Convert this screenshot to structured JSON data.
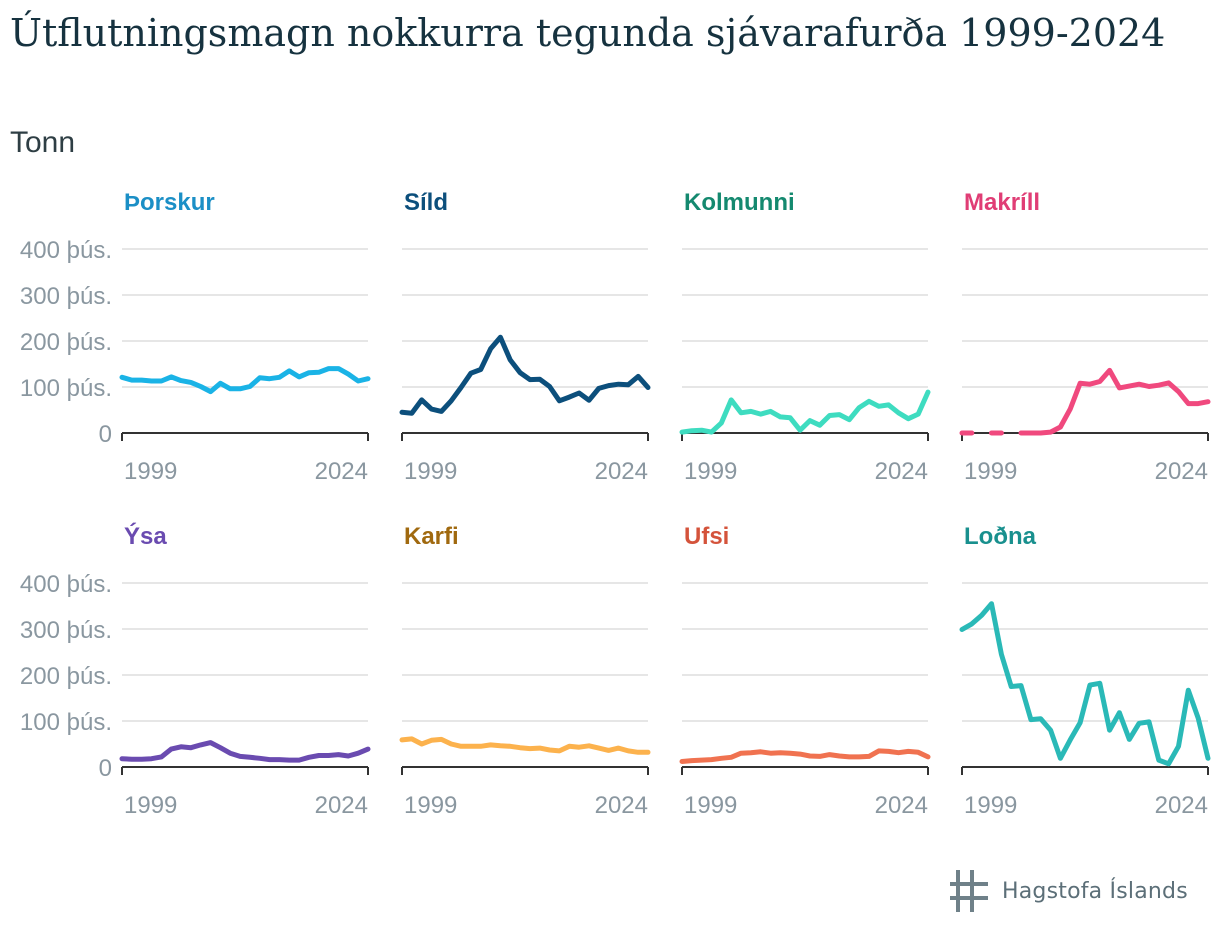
{
  "title": "Útflutningsmagn nokkurra tegunda sjávarafurða 1999-2024",
  "subtitle": "Tonn",
  "logo_text": "Hagstofa Íslands",
  "chart_data": {
    "type": "line",
    "unit": "Tonn",
    "x": [
      1999,
      2000,
      2001,
      2002,
      2003,
      2004,
      2005,
      2006,
      2007,
      2008,
      2009,
      2010,
      2011,
      2012,
      2013,
      2014,
      2015,
      2016,
      2017,
      2018,
      2019,
      2020,
      2021,
      2022,
      2023,
      2024
    ],
    "x_tick_labels": [
      "1999",
      "2024"
    ],
    "y_tick_labels": [
      "0",
      "100 þús.",
      "200 þús.",
      "300 þús.",
      "400 þús."
    ],
    "y_ticks": [
      0,
      100000,
      200000,
      300000,
      400000
    ],
    "ylim": [
      0,
      400000
    ],
    "grid": true,
    "layout": "2 rows x 4 columns",
    "series": [
      {
        "name": "Þorskur",
        "color": "#1ab3e6",
        "values": [
          121000,
          115000,
          115000,
          113000,
          113000,
          122000,
          114000,
          110000,
          101000,
          90000,
          108000,
          96000,
          96000,
          101000,
          120000,
          118000,
          121000,
          135000,
          122000,
          131000,
          132000,
          140000,
          140000,
          128000,
          113000,
          118000
        ]
      },
      {
        "name": "Síld",
        "color": "#0c4f7c",
        "values": [
          45000,
          43000,
          72000,
          52000,
          47000,
          70000,
          99000,
          130000,
          138000,
          183000,
          208000,
          159000,
          131000,
          116000,
          117000,
          101000,
          70000,
          78000,
          87000,
          71000,
          97000,
          103000,
          106000,
          105000,
          123000,
          99000
        ]
      },
      {
        "name": "Kolmunni",
        "color": "#3edcc0",
        "values": [
          2000,
          5000,
          6000,
          2000,
          22000,
          72000,
          44000,
          47000,
          41000,
          47000,
          35000,
          33000,
          6000,
          27000,
          17000,
          38000,
          40000,
          29000,
          55000,
          69000,
          58000,
          61000,
          44000,
          31000,
          41000,
          89000
        ]
      },
      {
        "name": "Makríll",
        "color": "#f0497e",
        "values": [
          0,
          0,
          null,
          0,
          0,
          null,
          0,
          0,
          0,
          2000,
          13000,
          52000,
          108000,
          106000,
          112000,
          136000,
          98000,
          102000,
          106000,
          101000,
          104000,
          109000,
          90000,
          64000,
          64000,
          68000
        ]
      },
      {
        "name": "Ýsa",
        "color": "#6a4bb0",
        "values": [
          18000,
          17000,
          17000,
          18000,
          22000,
          39000,
          44000,
          42000,
          48000,
          53000,
          42000,
          30000,
          23000,
          21000,
          19000,
          16000,
          16000,
          15000,
          15000,
          21000,
          25000,
          25000,
          27000,
          24000,
          30000,
          39000
        ]
      },
      {
        "name": "Karfi",
        "color": "#fcb24d",
        "values": [
          59000,
          61000,
          50000,
          58000,
          60000,
          50000,
          45000,
          45000,
          45000,
          48000,
          46000,
          45000,
          42000,
          40000,
          41000,
          37000,
          35000,
          45000,
          43000,
          46000,
          41000,
          36000,
          41000,
          35000,
          32000,
          32000
        ]
      },
      {
        "name": "Ufsi",
        "color": "#f07250",
        "values": [
          12000,
          14000,
          15000,
          16000,
          19000,
          21000,
          30000,
          31000,
          33000,
          30000,
          31000,
          30000,
          28000,
          24000,
          23000,
          27000,
          24000,
          22000,
          22000,
          23000,
          35000,
          34000,
          31000,
          34000,
          32000,
          22000
        ]
      },
      {
        "name": "Loðna",
        "color": "#2ab9b7",
        "values": [
          299000,
          311000,
          330000,
          355000,
          245000,
          175000,
          177000,
          103000,
          105000,
          80000,
          19000,
          59000,
          96000,
          178000,
          182000,
          80000,
          118000,
          60000,
          95000,
          98000,
          15000,
          7000,
          45000,
          167000,
          106000,
          19000
        ]
      }
    ]
  },
  "panel_title_colors": [
    "#1b8fc6",
    "#0c4f7c",
    "#14896f",
    "#e03d75",
    "#6a4bb0",
    "#a0690f",
    "#d4533b",
    "#19908e"
  ]
}
